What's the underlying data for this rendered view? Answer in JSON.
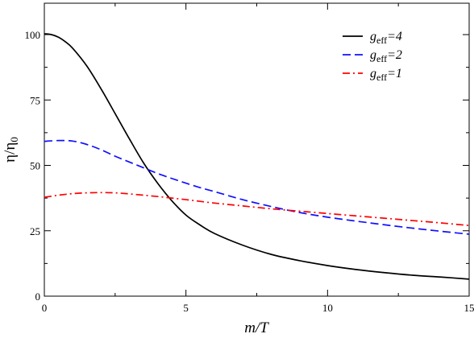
{
  "chart_data": {
    "type": "line",
    "title": "",
    "xlabel": "m/T",
    "ylabel": "η/η",
    "ylabel_sub": "0",
    "xlim": [
      0,
      15
    ],
    "ylim": [
      0,
      112
    ],
    "xticks": [
      0,
      5,
      10,
      15
    ],
    "yticks": [
      0,
      25,
      50,
      75,
      100
    ],
    "grid": false,
    "legend_position": "top-right",
    "series": [
      {
        "name": "g_eff=4",
        "label_base": "g",
        "label_sub": "eff",
        "label_tail": "=4",
        "color": "#000000",
        "dash": "solid",
        "x": [
          0,
          0.25,
          0.5,
          0.75,
          1.0,
          1.5,
          2.0,
          2.5,
          3.0,
          3.5,
          4.0,
          4.5,
          5.0,
          5.5,
          6.0,
          7.0,
          8.0,
          9.0,
          10.0,
          11.0,
          12.0,
          13.0,
          14.0,
          15.0
        ],
        "y": [
          100.3,
          100.0,
          99.0,
          97.2,
          94.8,
          88.0,
          79.3,
          69.8,
          60.2,
          51.0,
          43.2,
          36.5,
          31.0,
          27.2,
          24.0,
          19.5,
          16.0,
          13.6,
          11.7,
          10.2,
          9.0,
          8.0,
          7.3,
          6.5
        ]
      },
      {
        "name": "g_eff=2",
        "label_base": "g",
        "label_sub": "eff",
        "label_tail": "=2",
        "color": "#1010ff",
        "dash": "dashed",
        "x": [
          0,
          0.5,
          1.0,
          1.5,
          2.0,
          2.5,
          3.0,
          3.5,
          4.0,
          4.5,
          5.0,
          5.5,
          6.0,
          7.0,
          8.0,
          9.0,
          10.0,
          11.0,
          12.0,
          13.0,
          14.0,
          15.0
        ],
        "y": [
          59.2,
          59.5,
          59.3,
          58.0,
          56.0,
          53.5,
          51.3,
          49.1,
          46.9,
          45.0,
          43.2,
          41.5,
          40.0,
          36.9,
          34.3,
          32.0,
          30.2,
          28.7,
          27.3,
          26.0,
          24.8,
          23.7
        ]
      },
      {
        "name": "g_eff=1",
        "label_base": "g",
        "label_sub": "eff",
        "label_tail": "=1",
        "color": "#ff0000",
        "dash": "dashdot",
        "x": [
          0,
          0.5,
          1.0,
          1.5,
          2.0,
          2.5,
          3.0,
          3.5,
          4.0,
          4.5,
          5.0,
          6.0,
          7.0,
          8.0,
          9.0,
          10.0,
          11.0,
          12.0,
          13.0,
          14.0,
          15.0
        ],
        "y": [
          37.8,
          38.6,
          39.2,
          39.5,
          39.6,
          39.5,
          39.1,
          38.6,
          38.1,
          37.5,
          36.9,
          35.6,
          34.5,
          33.4,
          32.5,
          31.6,
          30.7,
          29.8,
          28.9,
          28.0,
          27.0
        ]
      }
    ]
  }
}
